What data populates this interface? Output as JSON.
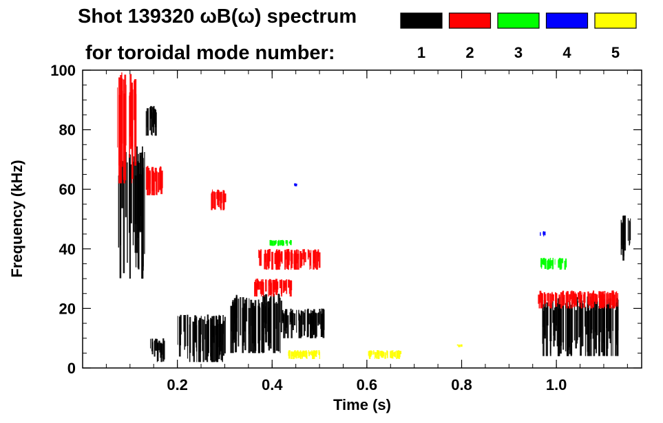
{
  "title_line1": "Shot 139320 ωB(ω) spectrum",
  "title_line2": "for toroidal mode number:",
  "legend": [
    {
      "n": "1",
      "color": "#000000"
    },
    {
      "n": "2",
      "color": "#ff0000"
    },
    {
      "n": "3",
      "color": "#00ff00"
    },
    {
      "n": "4",
      "color": "#0000ff"
    },
    {
      "n": "5",
      "color": "#ffff00"
    }
  ],
  "chart_data": {
    "type": "heatmap",
    "title": "Shot 139320 ωB(ω) spectrum",
    "xlabel": "Time (s)",
    "ylabel": "Frequency (kHz)",
    "xlim": [
      0.0,
      1.18
    ],
    "ylim": [
      0,
      100
    ],
    "xticks": [
      0.2,
      0.4,
      0.6,
      0.8,
      1.0
    ],
    "xtick_labels": [
      "0.2",
      "0.4",
      "0.6",
      "0.8",
      "1.0"
    ],
    "yticks": [
      0,
      20,
      40,
      60,
      80,
      100
    ],
    "ytick_labels": [
      "0",
      "20",
      "40",
      "60",
      "80",
      "100"
    ],
    "series": [
      {
        "name": "n=1",
        "color": "#000000",
        "features": [
          {
            "t0": 0.075,
            "t1": 0.13,
            "f0": 30,
            "f1": 75
          },
          {
            "t0": 0.13,
            "t1": 0.155,
            "f0": 78,
            "f1": 88
          },
          {
            "t0": 0.14,
            "t1": 0.17,
            "f0": 2,
            "f1": 10
          },
          {
            "t0": 0.2,
            "t1": 0.3,
            "f0": 2,
            "f1": 18
          },
          {
            "t0": 0.31,
            "t1": 0.42,
            "f0": 5,
            "f1": 25
          },
          {
            "t0": 0.42,
            "t1": 0.51,
            "f0": 10,
            "f1": 20
          },
          {
            "t0": 0.97,
            "t1": 1.13,
            "f0": 4,
            "f1": 24
          },
          {
            "t0": 1.135,
            "t1": 1.16,
            "f0": 36,
            "f1": 52
          }
        ]
      },
      {
        "name": "n=2",
        "color": "#ff0000",
        "features": [
          {
            "t0": 0.07,
            "t1": 0.11,
            "f0": 62,
            "f1": 100
          },
          {
            "t0": 0.13,
            "t1": 0.17,
            "f0": 58,
            "f1": 68
          },
          {
            "t0": 0.27,
            "t1": 0.3,
            "f0": 53,
            "f1": 60
          },
          {
            "t0": 0.37,
            "t1": 0.5,
            "f0": 33,
            "f1": 40
          },
          {
            "t0": 0.36,
            "t1": 0.44,
            "f0": 24,
            "f1": 30
          },
          {
            "t0": 0.96,
            "t1": 1.13,
            "f0": 20,
            "f1": 26
          }
        ]
      },
      {
        "name": "n=3",
        "color": "#00ff00",
        "features": [
          {
            "t0": 0.39,
            "t1": 0.44,
            "f0": 41,
            "f1": 43
          },
          {
            "t0": 0.965,
            "t1": 1.02,
            "f0": 33,
            "f1": 37
          }
        ]
      },
      {
        "name": "n=4",
        "color": "#0000ff",
        "features": [
          {
            "t0": 0.965,
            "t1": 0.975,
            "f0": 44,
            "f1": 46
          },
          {
            "t0": 0.445,
            "t1": 0.45,
            "f0": 61,
            "f1": 62
          }
        ]
      },
      {
        "name": "n=5",
        "color": "#ffff00",
        "features": [
          {
            "t0": 0.43,
            "t1": 0.5,
            "f0": 3,
            "f1": 6
          },
          {
            "t0": 0.6,
            "t1": 0.67,
            "f0": 3,
            "f1": 6
          },
          {
            "t0": 0.79,
            "t1": 0.8,
            "f0": 7,
            "f1": 8
          }
        ]
      }
    ]
  }
}
